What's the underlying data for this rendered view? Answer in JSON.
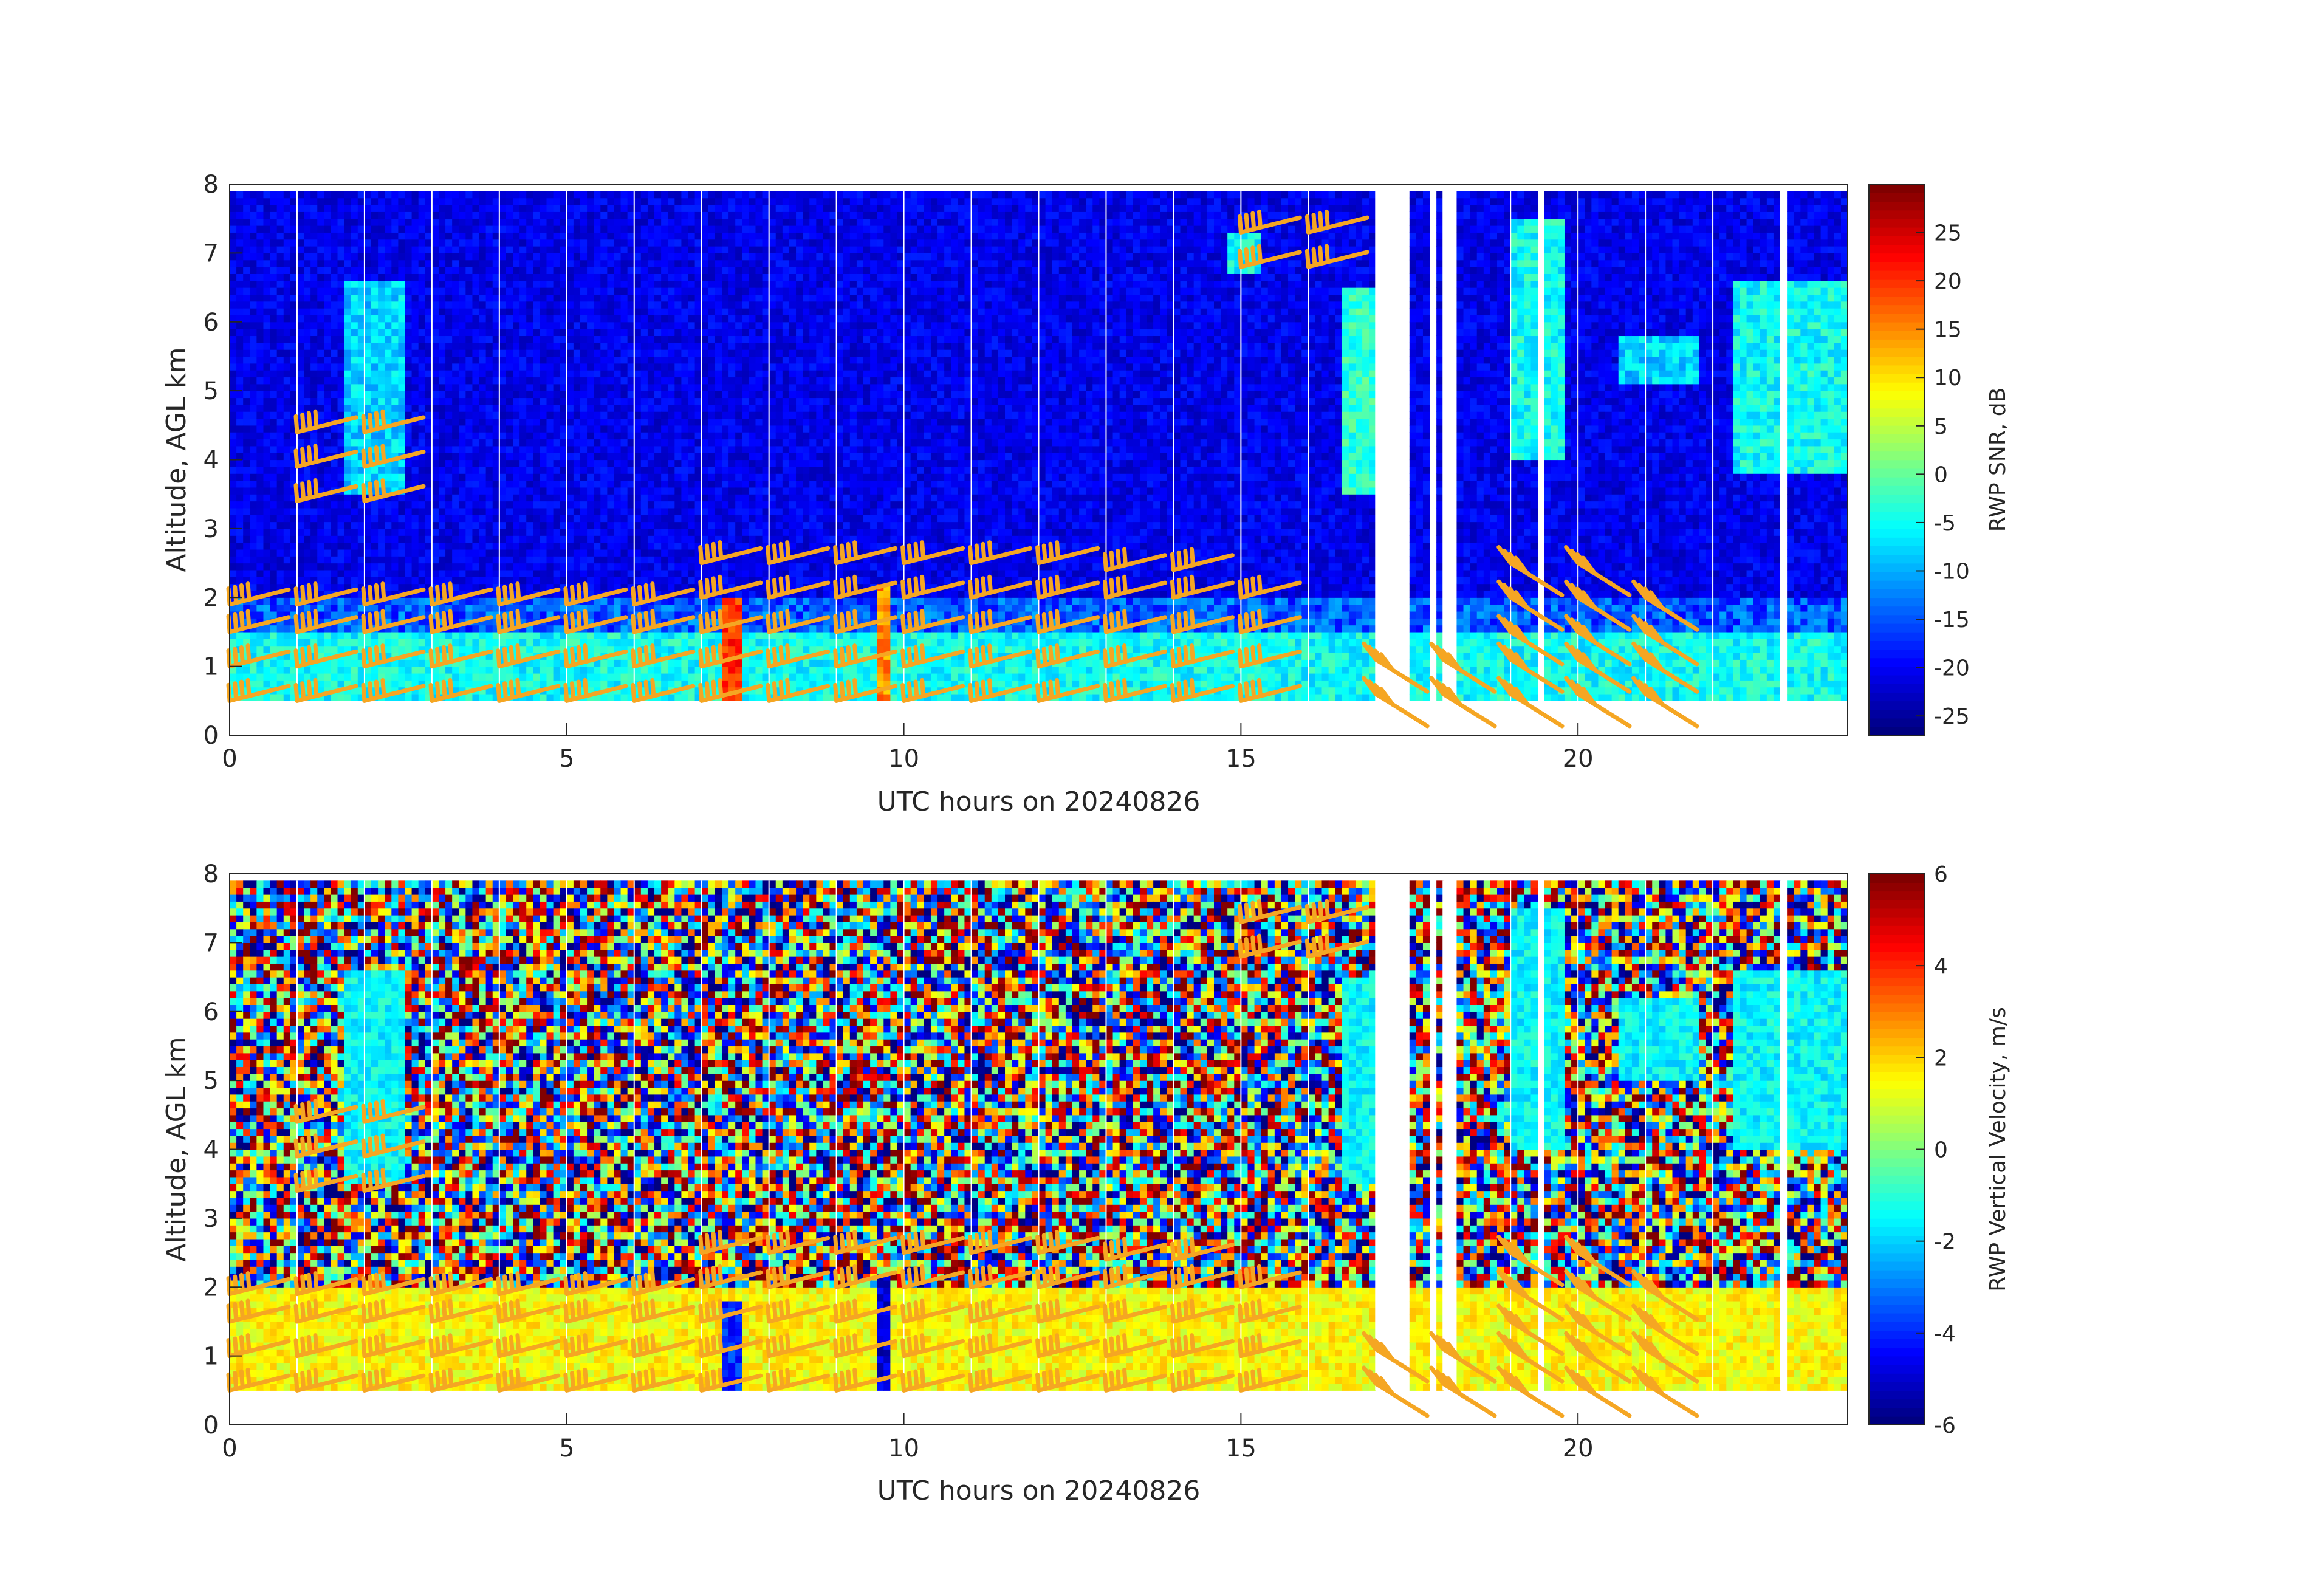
{
  "figure": {
    "background": "#ffffff",
    "barb_color": "#f5a623",
    "colormap": "jet"
  },
  "chart_data": [
    {
      "type": "heatmap",
      "id": "snr",
      "title": "",
      "xlabel": "UTC hours on 20240826",
      "ylabel": "Altitude, AGL km",
      "xlim": [
        0,
        24
      ],
      "ylim": [
        0,
        8
      ],
      "xticks": [
        0,
        5,
        10,
        15,
        20
      ],
      "yticks": [
        0,
        1,
        2,
        3,
        4,
        5,
        6,
        7,
        8
      ],
      "grid": false,
      "data_altitude_range_km": [
        0.5,
        7.9
      ],
      "colorbar": {
        "label": "RWP SNR, dB",
        "range": [
          -27,
          30
        ],
        "ticks": [
          25,
          20,
          15,
          10,
          5,
          0,
          -5,
          -10,
          -15,
          -20,
          -25
        ]
      },
      "features": [
        {
          "name": "boundary layer echo",
          "x_range_h": [
            0,
            24
          ],
          "alt_range_km": [
            0.5,
            1.5
          ],
          "snr_db": -5
        },
        {
          "name": "cloud echo",
          "x_range_h": [
            1.7,
            2.6
          ],
          "alt_range_km": [
            3.5,
            6.6
          ],
          "snr_db": -8
        },
        {
          "name": "cloud echo",
          "x_range_h": [
            14.8,
            15.3
          ],
          "alt_range_km": [
            6.7,
            7.3
          ],
          "snr_db": -5
        },
        {
          "name": "cloud echo",
          "x_range_h": [
            16.5,
            17.5
          ],
          "alt_range_km": [
            3.5,
            6.5
          ],
          "snr_db": -3
        },
        {
          "name": "cloud echo",
          "x_range_h": [
            19.0,
            19.8
          ],
          "alt_range_km": [
            4.0,
            7.5
          ],
          "snr_db": -5
        },
        {
          "name": "cloud echo",
          "x_range_h": [
            20.6,
            21.8
          ],
          "alt_range_km": [
            5.1,
            5.8
          ],
          "snr_db": -8
        },
        {
          "name": "cloud echo",
          "x_range_h": [
            22.3,
            24.0
          ],
          "alt_range_km": [
            3.8,
            6.6
          ],
          "snr_db": -5
        },
        {
          "name": "strong echo column",
          "x_range_h": [
            7.3,
            7.6
          ],
          "alt_range_km": [
            0.5,
            2.0
          ],
          "snr_db": 20
        },
        {
          "name": "strong echo column",
          "x_range_h": [
            9.6,
            9.8
          ],
          "alt_range_km": [
            0.5,
            2.2
          ],
          "snr_db": 15
        }
      ],
      "gaps_h": [
        [
          17.0,
          17.5
        ],
        [
          17.8,
          17.85
        ],
        [
          18.0,
          18.2
        ],
        [
          19.45,
          19.5
        ],
        [
          23.0,
          23.05
        ]
      ],
      "wind_barbs_present": true
    },
    {
      "type": "heatmap",
      "id": "vvel",
      "title": "",
      "xlabel": "UTC hours on 20240826",
      "ylabel": "Altitude, AGL km",
      "xlim": [
        0,
        24
      ],
      "ylim": [
        0,
        8
      ],
      "xticks": [
        0,
        5,
        10,
        15,
        20
      ],
      "yticks": [
        0,
        1,
        2,
        3,
        4,
        5,
        6,
        7,
        8
      ],
      "grid": false,
      "data_altitude_range_km": [
        0.5,
        7.9
      ],
      "colorbar": {
        "label": "RWP Vertical Velocity, m/s",
        "range": [
          -6,
          6
        ],
        "ticks": [
          6,
          4,
          2,
          0,
          -2,
          -4,
          -6
        ]
      },
      "features": [
        {
          "name": "noise field (random velocities)",
          "x_range_h": [
            0,
            24
          ],
          "alt_range_km": [
            2.0,
            7.9
          ],
          "w_ms": 0
        },
        {
          "name": "boundary layer",
          "x_range_h": [
            0,
            24
          ],
          "alt_range_km": [
            0.5,
            2.0
          ],
          "w_ms": 1.5
        },
        {
          "name": "cloud fall speed",
          "x_range_h": [
            1.7,
            2.6
          ],
          "alt_range_km": [
            3.5,
            6.6
          ],
          "w_ms": -1.5
        },
        {
          "name": "cloud fall speed",
          "x_range_h": [
            16.5,
            17.5
          ],
          "alt_range_km": [
            3.5,
            6.5
          ],
          "w_ms": -1.5
        },
        {
          "name": "cloud fall speed",
          "x_range_h": [
            19.0,
            19.8
          ],
          "alt_range_km": [
            4.0,
            7.5
          ],
          "w_ms": -1.5
        },
        {
          "name": "cloud fall speed",
          "x_range_h": [
            20.6,
            21.8
          ],
          "alt_range_km": [
            5.0,
            6.2
          ],
          "w_ms": -1.5
        },
        {
          "name": "cloud fall speed",
          "x_range_h": [
            22.3,
            24.0
          ],
          "alt_range_km": [
            4.0,
            6.6
          ],
          "w_ms": -1.5
        },
        {
          "name": "downdraft column",
          "x_range_h": [
            7.3,
            7.6
          ],
          "alt_range_km": [
            0.5,
            1.8
          ],
          "w_ms": -4
        },
        {
          "name": "downdraft column",
          "x_range_h": [
            9.6,
            9.8
          ],
          "alt_range_km": [
            0.5,
            2.2
          ],
          "w_ms": -5
        }
      ],
      "gaps_h": [
        [
          17.0,
          17.5
        ],
        [
          17.8,
          17.85
        ],
        [
          18.0,
          18.2
        ],
        [
          19.45,
          19.5
        ],
        [
          23.0,
          23.05
        ]
      ],
      "wind_barbs_present": true
    }
  ],
  "wind_barbs": [
    {
      "t": 0.0,
      "alts": [
        0.5,
        1.0,
        1.5,
        1.9
      ]
    },
    {
      "t": 1.0,
      "alts": [
        0.5,
        1.0,
        1.5,
        1.9,
        3.4,
        3.9,
        4.4
      ]
    },
    {
      "t": 2.0,
      "alts": [
        0.5,
        1.0,
        1.5,
        1.9,
        3.4,
        3.9,
        4.4
      ]
    },
    {
      "t": 3.0,
      "alts": [
        0.5,
        1.0,
        1.5,
        1.9
      ]
    },
    {
      "t": 4.0,
      "alts": [
        0.5,
        1.0,
        1.5,
        1.9
      ]
    },
    {
      "t": 5.0,
      "alts": [
        0.5,
        1.0,
        1.5,
        1.9
      ]
    },
    {
      "t": 6.0,
      "alts": [
        0.5,
        1.0,
        1.5,
        1.9
      ]
    },
    {
      "t": 7.0,
      "alts": [
        0.5,
        1.0,
        1.5,
        2.0,
        2.5
      ]
    },
    {
      "t": 8.0,
      "alts": [
        0.5,
        1.0,
        1.5,
        2.0,
        2.5
      ]
    },
    {
      "t": 9.0,
      "alts": [
        0.5,
        1.0,
        1.5,
        2.0,
        2.5
      ]
    },
    {
      "t": 10.0,
      "alts": [
        0.5,
        1.0,
        1.5,
        2.0,
        2.5
      ]
    },
    {
      "t": 11.0,
      "alts": [
        0.5,
        1.0,
        1.5,
        2.0,
        2.5
      ]
    },
    {
      "t": 12.0,
      "alts": [
        0.5,
        1.0,
        1.5,
        2.0,
        2.5
      ]
    },
    {
      "t": 13.0,
      "alts": [
        0.5,
        1.0,
        1.5,
        2.0,
        2.4
      ]
    },
    {
      "t": 14.0,
      "alts": [
        0.5,
        1.0,
        1.5,
        2.0,
        2.4
      ]
    },
    {
      "t": 15.0,
      "alts": [
        0.5,
        1.0,
        1.5,
        2.0,
        6.8,
        7.3
      ]
    },
    {
      "t": 16.0,
      "alts": [
        6.8,
        7.3
      ]
    },
    {
      "t": 17.0,
      "alts": [
        0.6,
        1.1
      ]
    },
    {
      "t": 18.0,
      "alts": [
        0.6,
        1.1
      ]
    },
    {
      "t": 19.0,
      "alts": [
        0.6,
        1.1,
        1.5,
        2.0,
        2.5
      ]
    },
    {
      "t": 20.0,
      "alts": [
        0.6,
        1.1,
        1.5,
        2.0,
        2.5
      ]
    },
    {
      "t": 21.0,
      "alts": [
        0.6,
        1.1,
        1.5,
        2.0
      ]
    }
  ]
}
